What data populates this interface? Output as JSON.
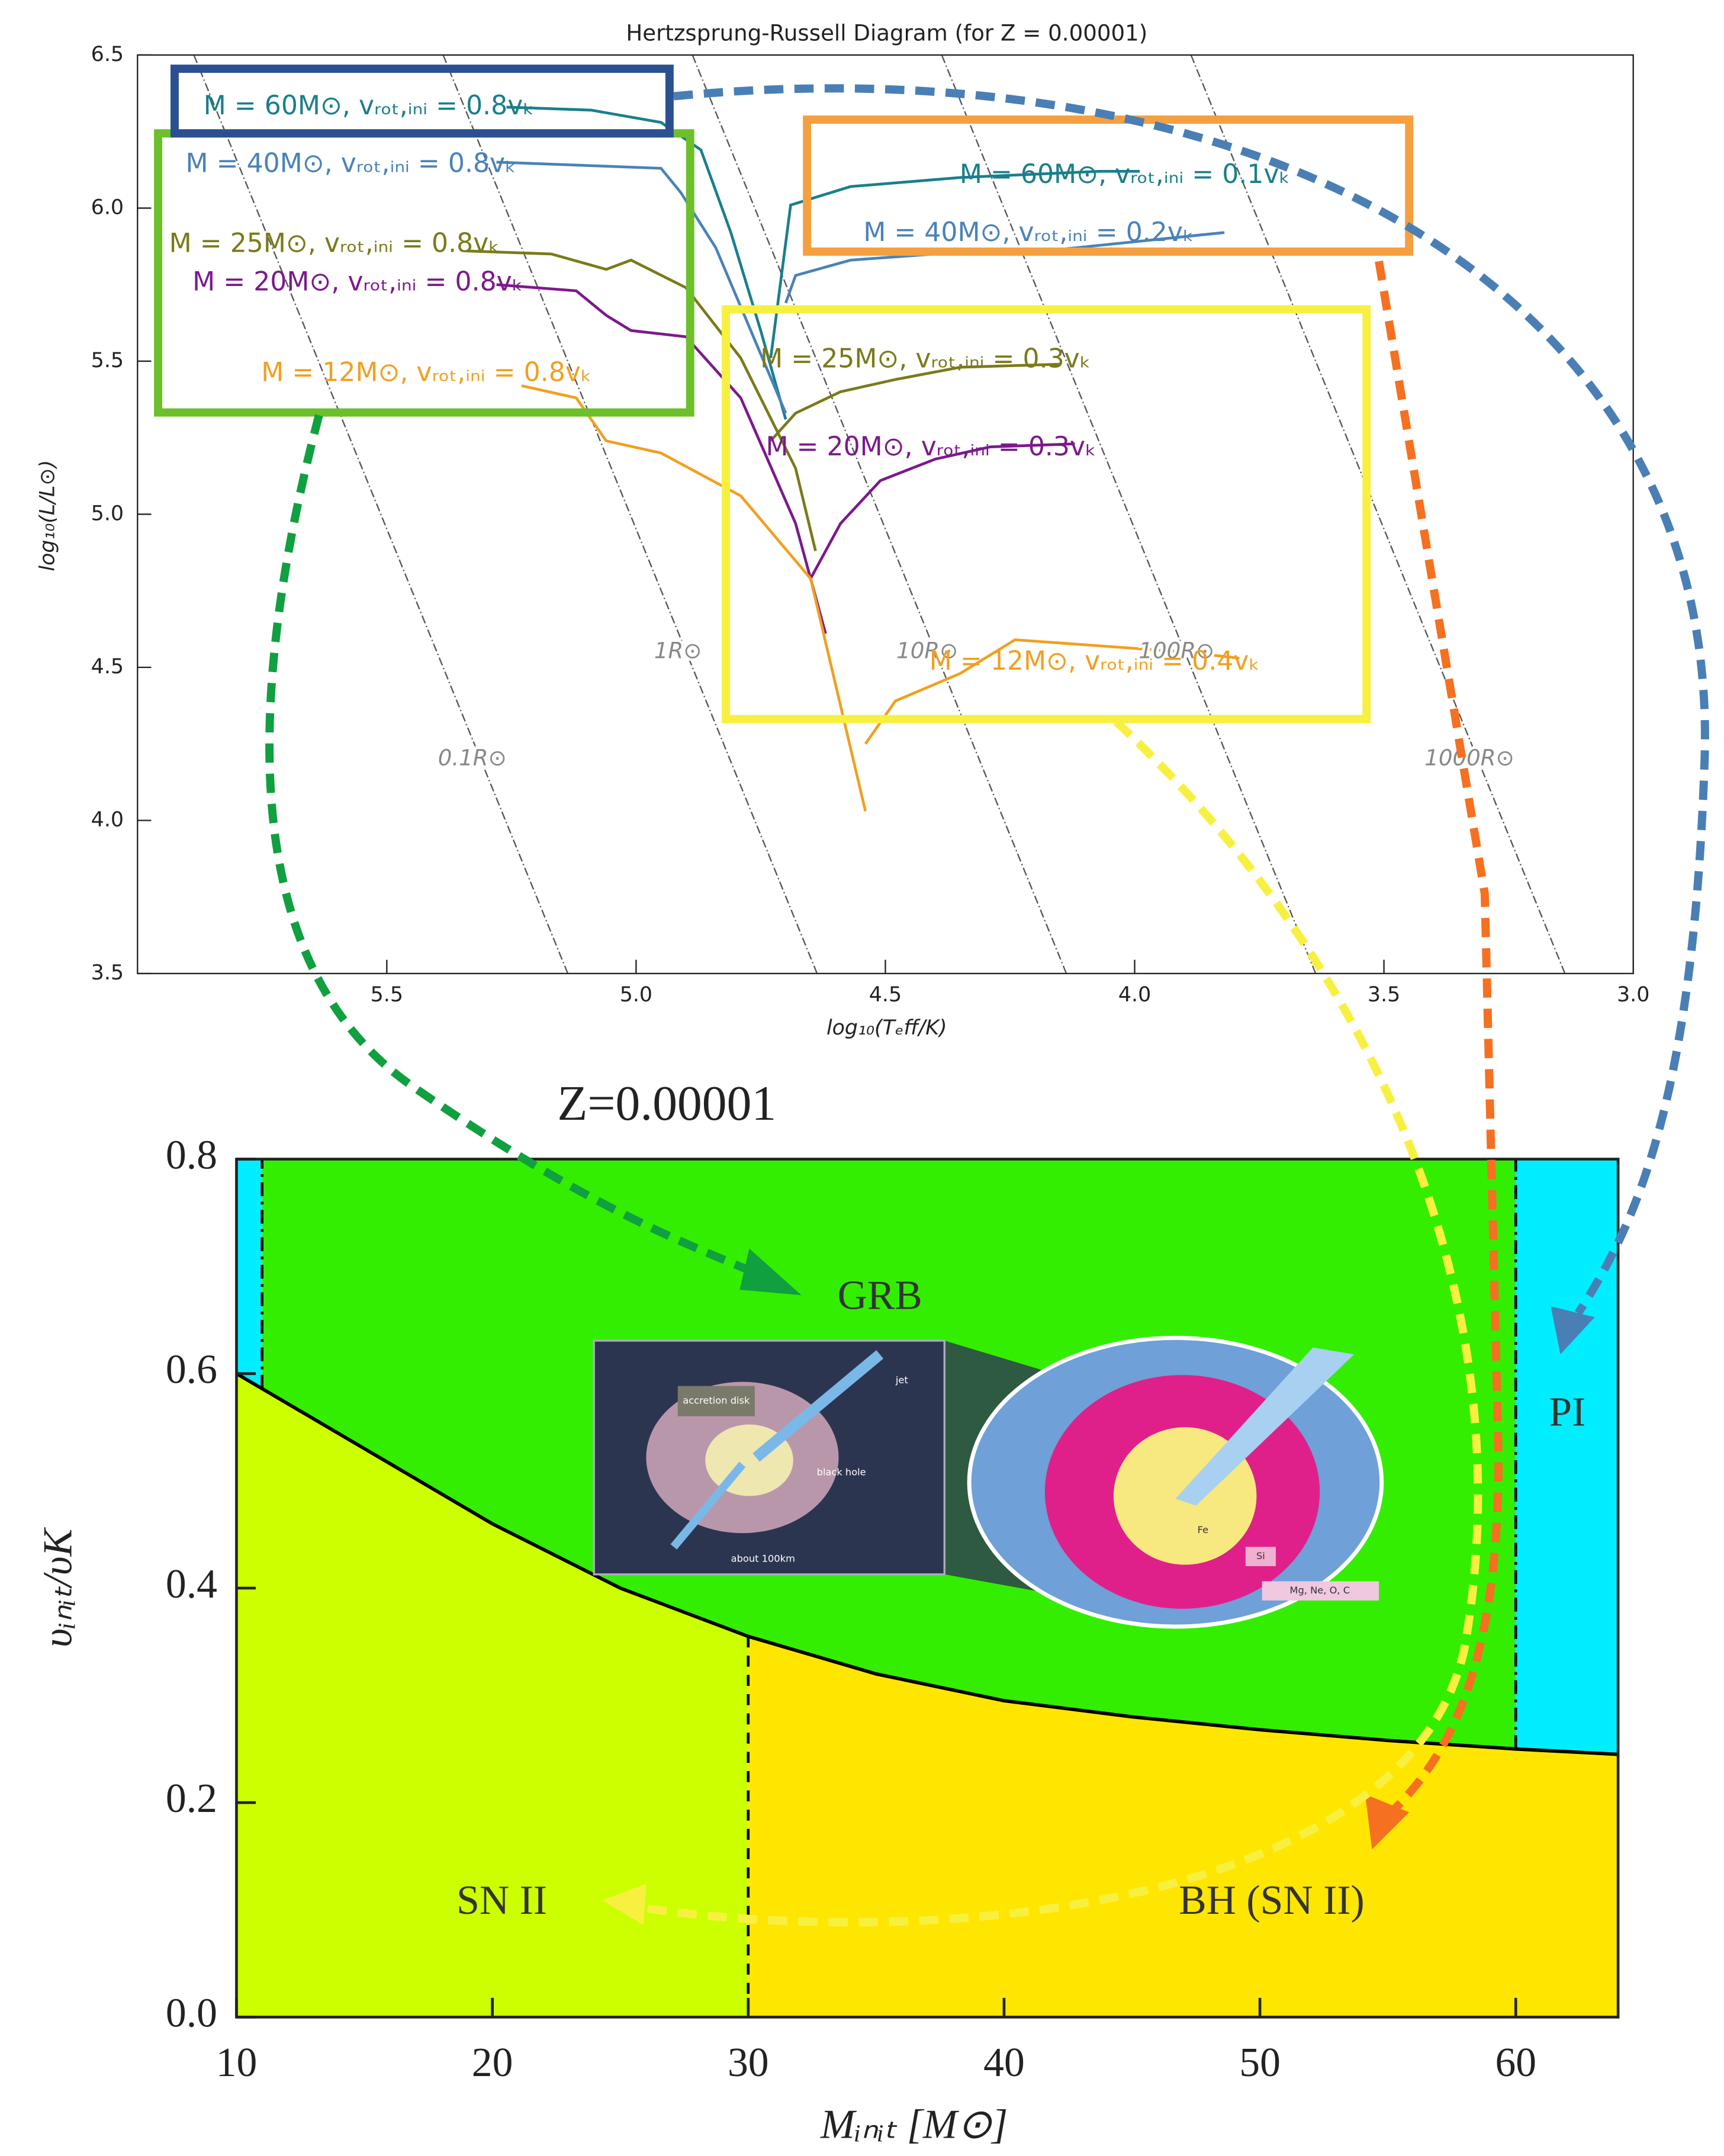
{
  "chart_data": [
    {
      "type": "line",
      "title": "Hertzsprung-Russell Diagram (for Z = 0.00001)",
      "x_label": "log₁₀(Tₑff/K)",
      "y_label": "log₁₀(L/L⊙)",
      "xlim": [
        6,
        3
      ],
      "ylim": [
        3.5,
        6.5
      ],
      "xticks": [
        5.5,
        {
          "value": 5,
          "label": "5.0"
        },
        4.5,
        {
          "value": 4,
          "label": "4.0"
        },
        3.5,
        {
          "value": 3,
          "label": "3.0"
        }
      ],
      "yticks": [
        3.5,
        {
          "value": 4,
          "label": "4.0"
        },
        4.5,
        {
          "value": 5,
          "label": "5.0"
        },
        5.5,
        {
          "value": 6,
          "label": "6.0"
        },
        6.5
      ],
      "radius_lines": [
        {
          "value": 0.1,
          "label": "0.1R⊙"
        },
        {
          "value": 1,
          "label": "1R⊙"
        },
        {
          "value": 10,
          "label": "10R⊙"
        },
        {
          "value": 100,
          "label": "100R⊙"
        },
        {
          "value": 1000,
          "label": "1000R⊙"
        }
      ],
      "series": [
        {
          "name": "M = 60M⊙, vᵣₒₜ,ᵢₙᵢ = 0.8vₖ",
          "color": "#1a7f8a",
          "x": [
            5.26,
            5.09,
            4.95,
            4.87,
            4.81,
            4.75,
            4.7
          ],
          "values": [
            6.33,
            6.32,
            6.28,
            6.19,
            5.92,
            5.6,
            5.31
          ]
        },
        {
          "name": "M = 60M⊙, vᵣₒₜ,ᵢₙᵢ = 0.1vₖ",
          "color": "#1a7f8a",
          "x": [
            4.73,
            4.69,
            4.57,
            4.35,
            4.07,
            3.99
          ],
          "values": [
            5.51,
            6.01,
            6.07,
            6.1,
            6.12,
            6.12
          ]
        },
        {
          "name": "M = 40M⊙, vᵣₒₜ,ᵢₙᵢ = 0.8vₖ",
          "color": "#4a82b8",
          "x": [
            5.28,
            4.95,
            4.91,
            4.84,
            4.77,
            4.7
          ],
          "values": [
            6.15,
            6.13,
            6.05,
            5.87,
            5.6,
            5.33
          ]
        },
        {
          "name": "M = 40M⊙, vᵣₒₜ,ᵢₙᵢ = 0.2vₖ",
          "color": "#4a82b8",
          "x": [
            4.7,
            4.68,
            4.57,
            4.4,
            4.18,
            3.82
          ],
          "values": [
            5.69,
            5.78,
            5.83,
            5.85,
            5.86,
            5.92
          ]
        },
        {
          "name": "M = 25M⊙, vᵣₒₜ,ᵢₙᵢ = 0.8vₖ",
          "color": "#7a7a1a",
          "x": [
            5.34,
            5.17,
            5.06,
            5.01,
            4.9,
            4.79,
            4.68,
            4.64
          ],
          "values": [
            5.86,
            5.85,
            5.8,
            5.83,
            5.74,
            5.51,
            5.15,
            4.88
          ]
        },
        {
          "name": "M = 25M⊙, vᵣₒₜ,ᵢₙᵢ = 0.3vₖ",
          "color": "#7a7a1a",
          "x": [
            4.73,
            4.68,
            4.59,
            4.48,
            4.35,
            4.15
          ],
          "values": [
            5.24,
            5.33,
            5.4,
            5.44,
            5.48,
            5.49
          ]
        },
        {
          "name": "M = 20M⊙, vᵣₒₜ,ᵢₙᵢ = 0.8vₖ",
          "color": "#7b1a8a",
          "x": [
            5.28,
            5.12,
            5.06,
            5.01,
            4.9,
            4.79,
            4.68,
            4.62
          ],
          "values": [
            5.75,
            5.73,
            5.65,
            5.6,
            5.58,
            5.38,
            4.97,
            4.61
          ]
        },
        {
          "name": "M = 20M⊙, vᵣₒₜ,ᵢₙᵢ = 0.3vₖ",
          "color": "#7b1a8a",
          "x": [
            4.65,
            4.59,
            4.51,
            4.4,
            4.29,
            4.12
          ],
          "values": [
            4.79,
            4.97,
            5.11,
            5.18,
            5.22,
            5.23
          ]
        },
        {
          "name": "M = 12M⊙, vᵣₒₜ,ᵢₙᵢ = 0.8vₖ",
          "color": "#f0a020",
          "x": [
            5.23,
            5.12,
            5.06,
            4.95,
            4.79,
            4.65,
            4.54
          ],
          "values": [
            5.42,
            5.38,
            5.24,
            5.2,
            5.06,
            4.79,
            4.03
          ]
        },
        {
          "name": "M = 12M⊙, vᵣₒₜ,ᵢₙᵢ = 0.4vₖ",
          "color": "#f0a020",
          "x": [
            4.54,
            4.48,
            4.35,
            4.24,
            4.07,
            3.9,
            3.79
          ],
          "values": [
            4.25,
            4.39,
            4.48,
            4.59,
            4.57,
            4.55,
            4.53
          ]
        }
      ]
    },
    {
      "type": "region",
      "title": "Z=0.00001",
      "x_label": "Mᵢₙᵢₜ [M⊙]",
      "y_label": "υᵢₙᵢₜ/υK",
      "xlim": [
        10,
        64
      ],
      "ylim": [
        0,
        0.8
      ],
      "xticks": [
        10,
        20,
        30,
        40,
        50,
        60
      ],
      "yticks": [
        {
          "value": 0,
          "label": "0.0"
        },
        0.2,
        0.4,
        0.6,
        0.8
      ],
      "boundary": {
        "x": [
          10,
          15,
          20,
          25,
          30,
          35,
          40,
          45,
          50,
          55,
          60,
          64
        ],
        "values": [
          0.6,
          0.53,
          0.46,
          0.4,
          0.355,
          0.32,
          0.295,
          0.28,
          0.268,
          0.258,
          0.25,
          0.245
        ]
      },
      "mass_limits": [
        11,
        30,
        60
      ],
      "regions": [
        {
          "label": "GRB",
          "color": "#33ee00"
        },
        {
          "label": "PI",
          "color": "#00eeff"
        },
        {
          "label": "SN II",
          "color": "#ccff00"
        },
        {
          "label": "BH (SN II)",
          "color": "#ffe600"
        }
      ],
      "inset_labels": [
        "accretion disk",
        "jet",
        "black hole",
        "about 100km",
        "Fe",
        "Si",
        "Mg, Ne, O, C"
      ]
    }
  ]
}
